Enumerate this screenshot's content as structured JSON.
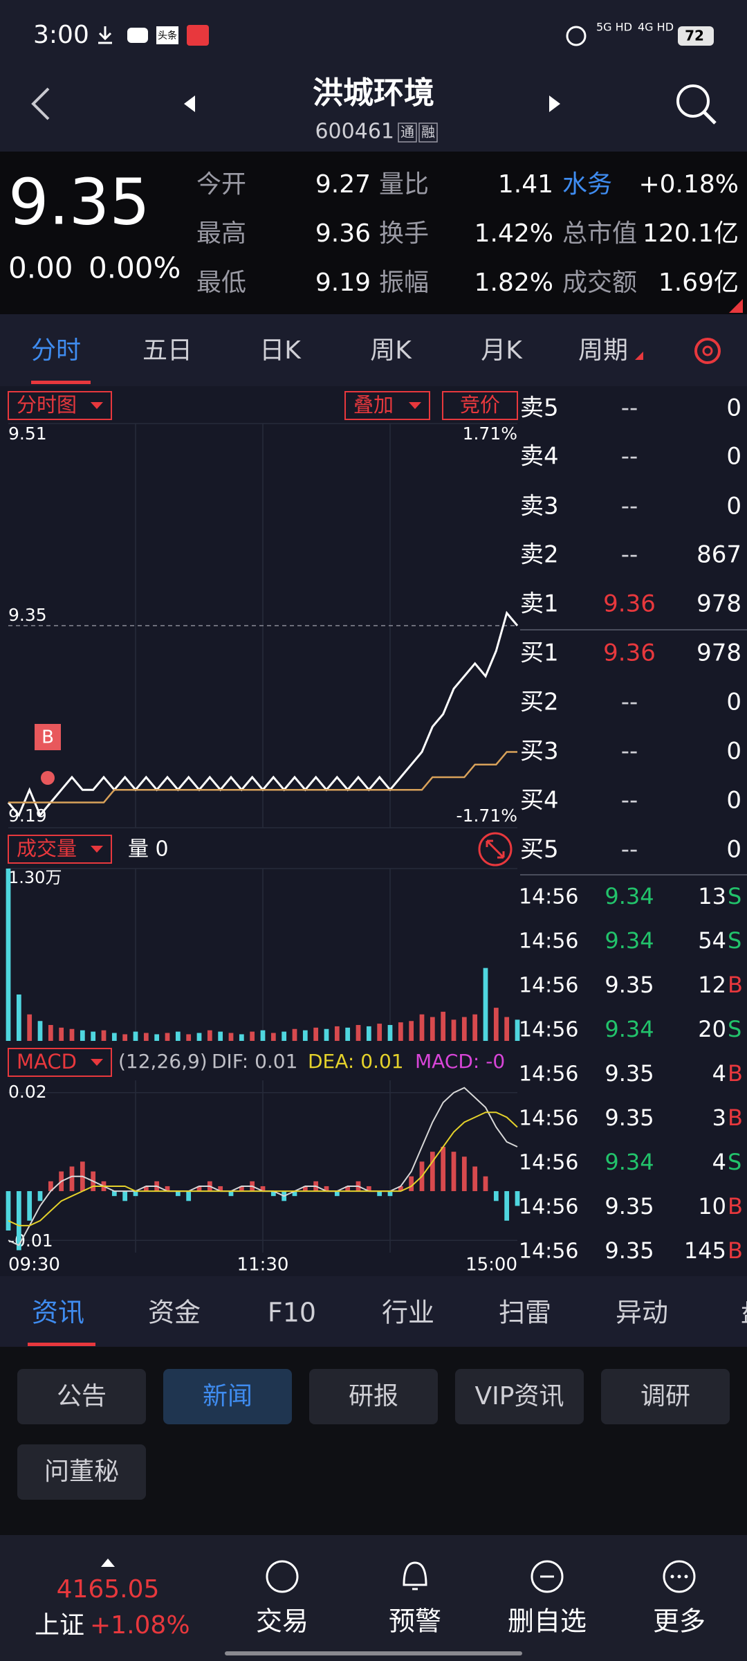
{
  "status_bar": {
    "time": "3:00",
    "icon_label": "头条",
    "net_1": "5G HD",
    "net_2": "4G HD",
    "battery": "72"
  },
  "header": {
    "title": "洪城环境",
    "code": "600461",
    "tags": [
      "通",
      "融"
    ]
  },
  "quote": {
    "price": "9.35",
    "change": "0.00",
    "change_pct": "0.00%",
    "stats": [
      [
        [
          "今开",
          "9.27"
        ],
        [
          "量比",
          "1.41"
        ],
        [
          "水务",
          "+0.18%"
        ]
      ],
      [
        [
          "最高",
          "9.36"
        ],
        [
          "换手",
          "1.42%"
        ],
        [
          "总市值",
          "120.1亿"
        ]
      ],
      [
        [
          "最低",
          "9.19"
        ],
        [
          "振幅",
          "1.82%"
        ],
        [
          "成交额",
          "1.69亿"
        ]
      ]
    ]
  },
  "tabs": [
    "分时",
    "五日",
    "日K",
    "周K",
    "月K",
    "周期"
  ],
  "chart_data": {
    "type": "line",
    "mode_label": "分时图",
    "overlay_label": "叠加",
    "auction_label": "竞价",
    "price": {
      "ylim": [
        9.19,
        9.51
      ],
      "yticks": [
        9.19,
        9.51
      ],
      "right_labels": [
        "-1.71%",
        "1.71%"
      ],
      "ref": 9.35,
      "marker_label": "B",
      "x_labels": [
        "09:30",
        "11:30",
        "15:00"
      ],
      "series": [
        {
          "color": "#ffffff",
          "values": [
            9.21,
            9.2,
            9.22,
            9.2,
            9.21,
            9.22,
            9.23,
            9.22,
            9.22,
            9.23,
            9.22,
            9.23,
            9.22,
            9.23,
            9.22,
            9.23,
            9.22,
            9.23,
            9.22,
            9.23,
            9.22,
            9.23,
            9.22,
            9.23,
            9.22,
            9.23,
            9.22,
            9.23,
            9.22,
            9.23,
            9.22,
            9.23,
            9.22,
            9.23,
            9.22,
            9.23,
            9.22,
            9.23,
            9.24,
            9.25,
            9.27,
            9.28,
            9.3,
            9.31,
            9.32,
            9.31,
            9.33,
            9.36,
            9.35
          ]
        },
        {
          "color": "#d9a25a",
          "values": [
            9.21,
            9.21,
            9.21,
            9.21,
            9.21,
            9.21,
            9.21,
            9.21,
            9.21,
            9.21,
            9.22,
            9.22,
            9.22,
            9.22,
            9.22,
            9.22,
            9.22,
            9.22,
            9.22,
            9.22,
            9.22,
            9.22,
            9.22,
            9.22,
            9.22,
            9.22,
            9.22,
            9.22,
            9.22,
            9.22,
            9.22,
            9.22,
            9.22,
            9.22,
            9.22,
            9.22,
            9.22,
            9.22,
            9.22,
            9.22,
            9.23,
            9.23,
            9.23,
            9.23,
            9.24,
            9.24,
            9.24,
            9.25,
            9.25
          ]
        }
      ]
    },
    "volume": {
      "label": "成交量",
      "volume_text": "量 0",
      "ylim": [
        0,
        13000
      ],
      "yticks": [
        {
          "value": 13000,
          "label": "1.30万"
        }
      ],
      "values": [
        13000,
        3500,
        2000,
        1500,
        1200,
        1000,
        900,
        800,
        700,
        800,
        600,
        500,
        700,
        600,
        500,
        600,
        700,
        500,
        600,
        800,
        700,
        600,
        500,
        700,
        800,
        600,
        700,
        900,
        800,
        1000,
        900,
        1100,
        1000,
        1200,
        1100,
        1300,
        1200,
        1400,
        1500,
        2000,
        1800,
        2200,
        1600,
        1800,
        2000,
        5500,
        2500,
        1800,
        1600
      ]
    },
    "macd": {
      "label": "MACD",
      "params": "(12,26,9)",
      "dif_label": "DIF: 0.01",
      "dea_label": "DEA: 0.01",
      "macd_label": "MACD: -0",
      "ylim": [
        -0.0125,
        0.0225
      ],
      "yticks": [
        -0.01,
        0.02
      ],
      "bars": [
        -0.008,
        -0.012,
        -0.006,
        -0.002,
        0.002,
        0.004,
        0.005,
        0.006,
        0.004,
        0.002,
        -0.001,
        -0.002,
        -0.001,
        0.001,
        0.002,
        0.001,
        -0.001,
        -0.002,
        0.001,
        0.002,
        0.001,
        -0.001,
        0.001,
        0.002,
        0.001,
        -0.001,
        -0.002,
        -0.001,
        0.001,
        0.002,
        0.001,
        -0.001,
        0.001,
        0.002,
        0.001,
        -0.001,
        -0.001,
        0.001,
        0.003,
        0.006,
        0.008,
        0.009,
        0.008,
        0.007,
        0.005,
        0.003,
        -0.002,
        -0.006,
        -0.003
      ],
      "dif": {
        "color": "#d8d8d8",
        "values": [
          -0.01,
          -0.011,
          -0.007,
          -0.003,
          0.0,
          0.002,
          0.003,
          0.003,
          0.002,
          0.001,
          0,
          0,
          0,
          0.001,
          0.001,
          0,
          0,
          0,
          0.001,
          0.001,
          0,
          0,
          0.001,
          0.001,
          0,
          0,
          -0.001,
          0,
          0.001,
          0.001,
          0,
          0,
          0.001,
          0.001,
          0,
          0,
          0,
          0.001,
          0.004,
          0.009,
          0.014,
          0.018,
          0.02,
          0.021,
          0.019,
          0.017,
          0.013,
          0.01,
          0.009
        ]
      },
      "dea": {
        "color": "#e5d22b",
        "values": [
          -0.006,
          -0.007,
          -0.007,
          -0.006,
          -0.004,
          -0.002,
          -0.001,
          0,
          0.001,
          0.001,
          0.001,
          0.001,
          0,
          0,
          0,
          0,
          0,
          0,
          0,
          0,
          0,
          0,
          0,
          0,
          0,
          0,
          0,
          0,
          0,
          0,
          0,
          0,
          0,
          0,
          0,
          0,
          0,
          0,
          0.001,
          0.003,
          0.006,
          0.009,
          0.012,
          0.014,
          0.015,
          0.016,
          0.016,
          0.015,
          0.013
        ]
      }
    }
  },
  "order_book": {
    "asks": [
      {
        "label": "卖5",
        "price": "--",
        "volume": "0"
      },
      {
        "label": "卖4",
        "price": "--",
        "volume": "0"
      },
      {
        "label": "卖3",
        "price": "--",
        "volume": "0"
      },
      {
        "label": "卖2",
        "price": "--",
        "volume": "867"
      },
      {
        "label": "卖1",
        "price": "9.36",
        "volume": "978"
      }
    ],
    "bids": [
      {
        "label": "买1",
        "price": "9.36",
        "volume": "978"
      },
      {
        "label": "买2",
        "price": "--",
        "volume": "0"
      },
      {
        "label": "买3",
        "price": "--",
        "volume": "0"
      },
      {
        "label": "买4",
        "price": "--",
        "volume": "0"
      },
      {
        "label": "买5",
        "price": "--",
        "volume": "0"
      }
    ]
  },
  "trades": [
    {
      "time": "14:56",
      "price": "9.34",
      "volume": "13",
      "side": "S"
    },
    {
      "time": "14:56",
      "price": "9.34",
      "volume": "54",
      "side": "S"
    },
    {
      "time": "14:56",
      "price": "9.35",
      "volume": "12",
      "side": "B"
    },
    {
      "time": "14:56",
      "price": "9.34",
      "volume": "20",
      "side": "S"
    },
    {
      "time": "14:56",
      "price": "9.35",
      "volume": "4",
      "side": "B"
    },
    {
      "time": "14:56",
      "price": "9.35",
      "volume": "3",
      "side": "B"
    },
    {
      "time": "14:56",
      "price": "9.34",
      "volume": "4",
      "side": "S"
    },
    {
      "time": "14:56",
      "price": "9.35",
      "volume": "10",
      "side": "B"
    },
    {
      "time": "14:56",
      "price": "9.35",
      "volume": "145",
      "side": "B"
    }
  ],
  "info_tabs": [
    "资讯",
    "资金",
    "F10",
    "行业",
    "扫雷",
    "异动",
    "盘"
  ],
  "chips": [
    "公告",
    "新闻",
    "研报",
    "VIP资讯",
    "调研",
    "问董秘"
  ],
  "bottom_nav": {
    "index_value": "4165.05",
    "index_name": "上证",
    "index_change": "+1.08%",
    "items": [
      "交易",
      "预警",
      "删自选",
      "更多"
    ]
  }
}
